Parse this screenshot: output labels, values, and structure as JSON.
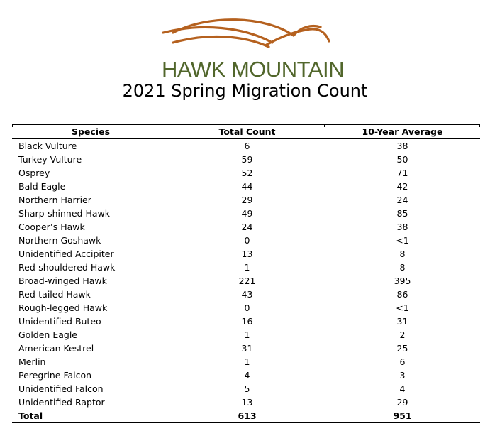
{
  "header": {
    "logo_text": "HAWK MOUNTAIN",
    "title": "2021 Spring Migration Count"
  },
  "colors": {
    "logo_text": "#51662b",
    "logo_lines": "#b5611f"
  },
  "table": {
    "columns": [
      "Species",
      "Total Count",
      "10-Year Average"
    ],
    "rows": [
      {
        "species": "Black Vulture",
        "total": "6",
        "avg": "38"
      },
      {
        "species": "Turkey Vulture",
        "total": "59",
        "avg": "50"
      },
      {
        "species": "Osprey",
        "total": "52",
        "avg": "71"
      },
      {
        "species": "Bald Eagle",
        "total": "44",
        "avg": "42"
      },
      {
        "species": "Northern Harrier",
        "total": "29",
        "avg": "24"
      },
      {
        "species": "Sharp-shinned Hawk",
        "total": "49",
        "avg": "85"
      },
      {
        "species": "Cooper’s Hawk",
        "total": "24",
        "avg": "38"
      },
      {
        "species": "Northern Goshawk",
        "total": "0",
        "avg": "<1"
      },
      {
        "species": "Unidentified Accipiter",
        "total": "13",
        "avg": "8"
      },
      {
        "species": "Red-shouldered Hawk",
        "total": "1",
        "avg": "8"
      },
      {
        "species": "Broad-winged Hawk",
        "total": "221",
        "avg": "395"
      },
      {
        "species": "Red-tailed Hawk",
        "total": "43",
        "avg": "86"
      },
      {
        "species": "Rough-legged Hawk",
        "total": "0",
        "avg": "<1"
      },
      {
        "species": "Unidentified Buteo",
        "total": "16",
        "avg": "31"
      },
      {
        "species": "Golden Eagle",
        "total": "1",
        "avg": "2"
      },
      {
        "species": "American Kestrel",
        "total": "31",
        "avg": "25"
      },
      {
        "species": "Merlin",
        "total": "1",
        "avg": "6"
      },
      {
        "species": "Peregrine Falcon",
        "total": "4",
        "avg": "3"
      },
      {
        "species": "Unidentified Falcon",
        "total": "5",
        "avg": "4"
      },
      {
        "species": "Unidentified Raptor",
        "total": "13",
        "avg": "29"
      }
    ],
    "total": {
      "label": "Total",
      "total": "613",
      "avg": "951"
    }
  }
}
